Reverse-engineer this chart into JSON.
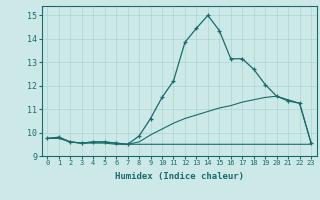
{
  "xlabel": "Humidex (Indice chaleur)",
  "bg_color": "#cce9e8",
  "grid_color": "#aad4d3",
  "line_color": "#1a6b6b",
  "xlim": [
    -0.5,
    23.5
  ],
  "ylim": [
    9.0,
    15.4
  ],
  "yticks": [
    9,
    10,
    11,
    12,
    13,
    14,
    15
  ],
  "xticks": [
    0,
    1,
    2,
    3,
    4,
    5,
    6,
    7,
    8,
    9,
    10,
    11,
    12,
    13,
    14,
    15,
    16,
    17,
    18,
    19,
    20,
    21,
    22,
    23
  ],
  "line1_x": [
    0,
    1,
    2,
    3,
    4,
    5,
    6,
    7,
    8,
    9,
    10,
    11,
    12,
    13,
    14,
    15,
    16,
    17,
    18,
    19,
    20,
    21,
    22,
    23
  ],
  "line1_y": [
    9.75,
    9.8,
    9.6,
    9.55,
    9.6,
    9.6,
    9.55,
    9.5,
    9.85,
    10.6,
    11.5,
    12.2,
    13.85,
    14.45,
    15.0,
    14.35,
    13.15,
    13.15,
    12.7,
    12.05,
    11.55,
    11.35,
    11.25,
    9.55
  ],
  "line2_x": [
    0,
    1,
    2,
    3,
    4,
    5,
    6,
    7,
    8,
    9,
    10,
    11,
    12,
    13,
    14,
    15,
    16,
    17,
    18,
    19,
    20,
    21,
    22,
    23
  ],
  "line2_y": [
    9.75,
    9.8,
    9.6,
    9.55,
    9.6,
    9.6,
    9.55,
    9.5,
    9.6,
    9.9,
    10.15,
    10.4,
    10.6,
    10.75,
    10.9,
    11.05,
    11.15,
    11.3,
    11.4,
    11.5,
    11.55,
    11.4,
    11.25,
    9.55
  ],
  "line3_x": [
    0,
    1,
    2,
    3,
    4,
    5,
    6,
    7,
    8,
    9,
    10,
    11,
    12,
    13,
    14,
    15,
    16,
    17,
    18,
    19,
    20,
    21,
    22,
    23
  ],
  "line3_y": [
    9.75,
    9.75,
    9.6,
    9.55,
    9.55,
    9.55,
    9.5,
    9.5,
    9.5,
    9.5,
    9.5,
    9.5,
    9.5,
    9.5,
    9.5,
    9.5,
    9.5,
    9.5,
    9.5,
    9.5,
    9.5,
    9.5,
    9.5,
    9.5
  ]
}
